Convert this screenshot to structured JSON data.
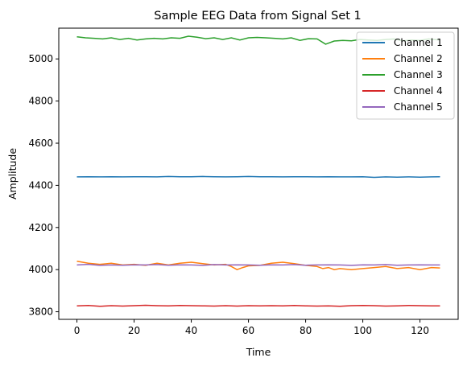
{
  "chart_data": {
    "type": "line",
    "title": "Sample EEG Data from Signal Set 1",
    "xlabel": "Time",
    "ylabel": "Amplitude",
    "xlim": [
      -6.35,
      133.35
    ],
    "ylim": [
      3764,
      5146
    ],
    "xticks": [
      0,
      20,
      40,
      60,
      80,
      100,
      120
    ],
    "yticks": [
      3800,
      4000,
      4200,
      4400,
      4600,
      4800,
      5000
    ],
    "legend_position": "upper right",
    "grid": false,
    "series": [
      {
        "name": "Channel 1",
        "color": "#1f77b4",
        "x": [
          0,
          4,
          8,
          12,
          16,
          20,
          24,
          28,
          32,
          36,
          40,
          44,
          48,
          52,
          56,
          60,
          64,
          68,
          72,
          76,
          80,
          84,
          88,
          92,
          96,
          100,
          104,
          108,
          112,
          116,
          120,
          124,
          127
        ],
        "y": [
          4440,
          4441,
          4440,
          4441,
          4440,
          4441,
          4441,
          4440,
          4442,
          4441,
          4441,
          4442,
          4441,
          4440,
          4441,
          4442,
          4441,
          4441,
          4440,
          4441,
          4441,
          4440,
          4441,
          4440,
          4440,
          4441,
          4438,
          4440,
          4439,
          4440,
          4439,
          4440,
          4441
        ]
      },
      {
        "name": "Channel 2",
        "color": "#ff7f0e",
        "x": [
          0,
          4,
          8,
          12,
          16,
          20,
          24,
          28,
          32,
          36,
          40,
          44,
          48,
          52,
          54,
          56,
          58,
          60,
          64,
          68,
          72,
          76,
          80,
          84,
          86,
          88,
          90,
          92,
          96,
          100,
          104,
          108,
          112,
          116,
          120,
          124,
          127
        ],
        "y": [
          4040,
          4030,
          4025,
          4030,
          4022,
          4025,
          4020,
          4030,
          4022,
          4030,
          4035,
          4028,
          4022,
          4025,
          4015,
          4000,
          4010,
          4018,
          4020,
          4030,
          4035,
          4028,
          4020,
          4015,
          4005,
          4010,
          4000,
          4005,
          4000,
          4005,
          4010,
          4015,
          4005,
          4010,
          4000,
          4010,
          4008
        ]
      },
      {
        "name": "Channel 3",
        "color": "#2ca02c",
        "x": [
          0,
          3,
          6,
          9,
          12,
          15,
          18,
          21,
          24,
          27,
          30,
          33,
          36,
          39,
          42,
          45,
          48,
          51,
          54,
          57,
          60,
          63,
          66,
          69,
          72,
          75,
          78,
          81,
          84,
          87,
          90,
          93,
          96,
          99,
          102,
          105,
          108,
          111,
          114,
          117,
          120,
          123,
          127
        ],
        "y": [
          5105,
          5100,
          5098,
          5095,
          5100,
          5092,
          5098,
          5090,
          5095,
          5098,
          5095,
          5100,
          5098,
          5108,
          5103,
          5096,
          5100,
          5092,
          5100,
          5090,
          5100,
          5102,
          5100,
          5098,
          5095,
          5100,
          5088,
          5096,
          5095,
          5070,
          5085,
          5088,
          5086,
          5092,
          5090,
          5088,
          5092,
          5095,
          5086,
          5090,
          5088,
          5095,
          5090
        ]
      },
      {
        "name": "Channel 4",
        "color": "#d62728",
        "x": [
          0,
          4,
          8,
          12,
          16,
          20,
          24,
          28,
          32,
          36,
          40,
          44,
          48,
          52,
          56,
          60,
          64,
          68,
          72,
          76,
          80,
          84,
          88,
          92,
          96,
          100,
          104,
          108,
          112,
          116,
          120,
          124,
          127
        ],
        "y": [
          3828,
          3830,
          3826,
          3829,
          3827,
          3829,
          3831,
          3829,
          3828,
          3830,
          3829,
          3828,
          3827,
          3829,
          3827,
          3829,
          3828,
          3829,
          3828,
          3830,
          3828,
          3827,
          3828,
          3826,
          3829,
          3830,
          3829,
          3827,
          3828,
          3830,
          3829,
          3828,
          3828
        ]
      },
      {
        "name": "Channel 5",
        "color": "#9467bd",
        "x": [
          0,
          4,
          8,
          12,
          16,
          20,
          24,
          28,
          32,
          36,
          40,
          44,
          48,
          52,
          56,
          60,
          64,
          68,
          72,
          76,
          80,
          84,
          88,
          92,
          96,
          100,
          104,
          108,
          112,
          116,
          120,
          124,
          127
        ],
        "y": [
          4022,
          4025,
          4020,
          4022,
          4021,
          4023,
          4022,
          4024,
          4021,
          4023,
          4022,
          4020,
          4024,
          4022,
          4023,
          4022,
          4021,
          4023,
          4022,
          4024,
          4021,
          4022,
          4023,
          4022,
          4020,
          4023,
          4022,
          4024,
          4021,
          4022,
          4023,
          4022,
          4022
        ]
      }
    ]
  }
}
